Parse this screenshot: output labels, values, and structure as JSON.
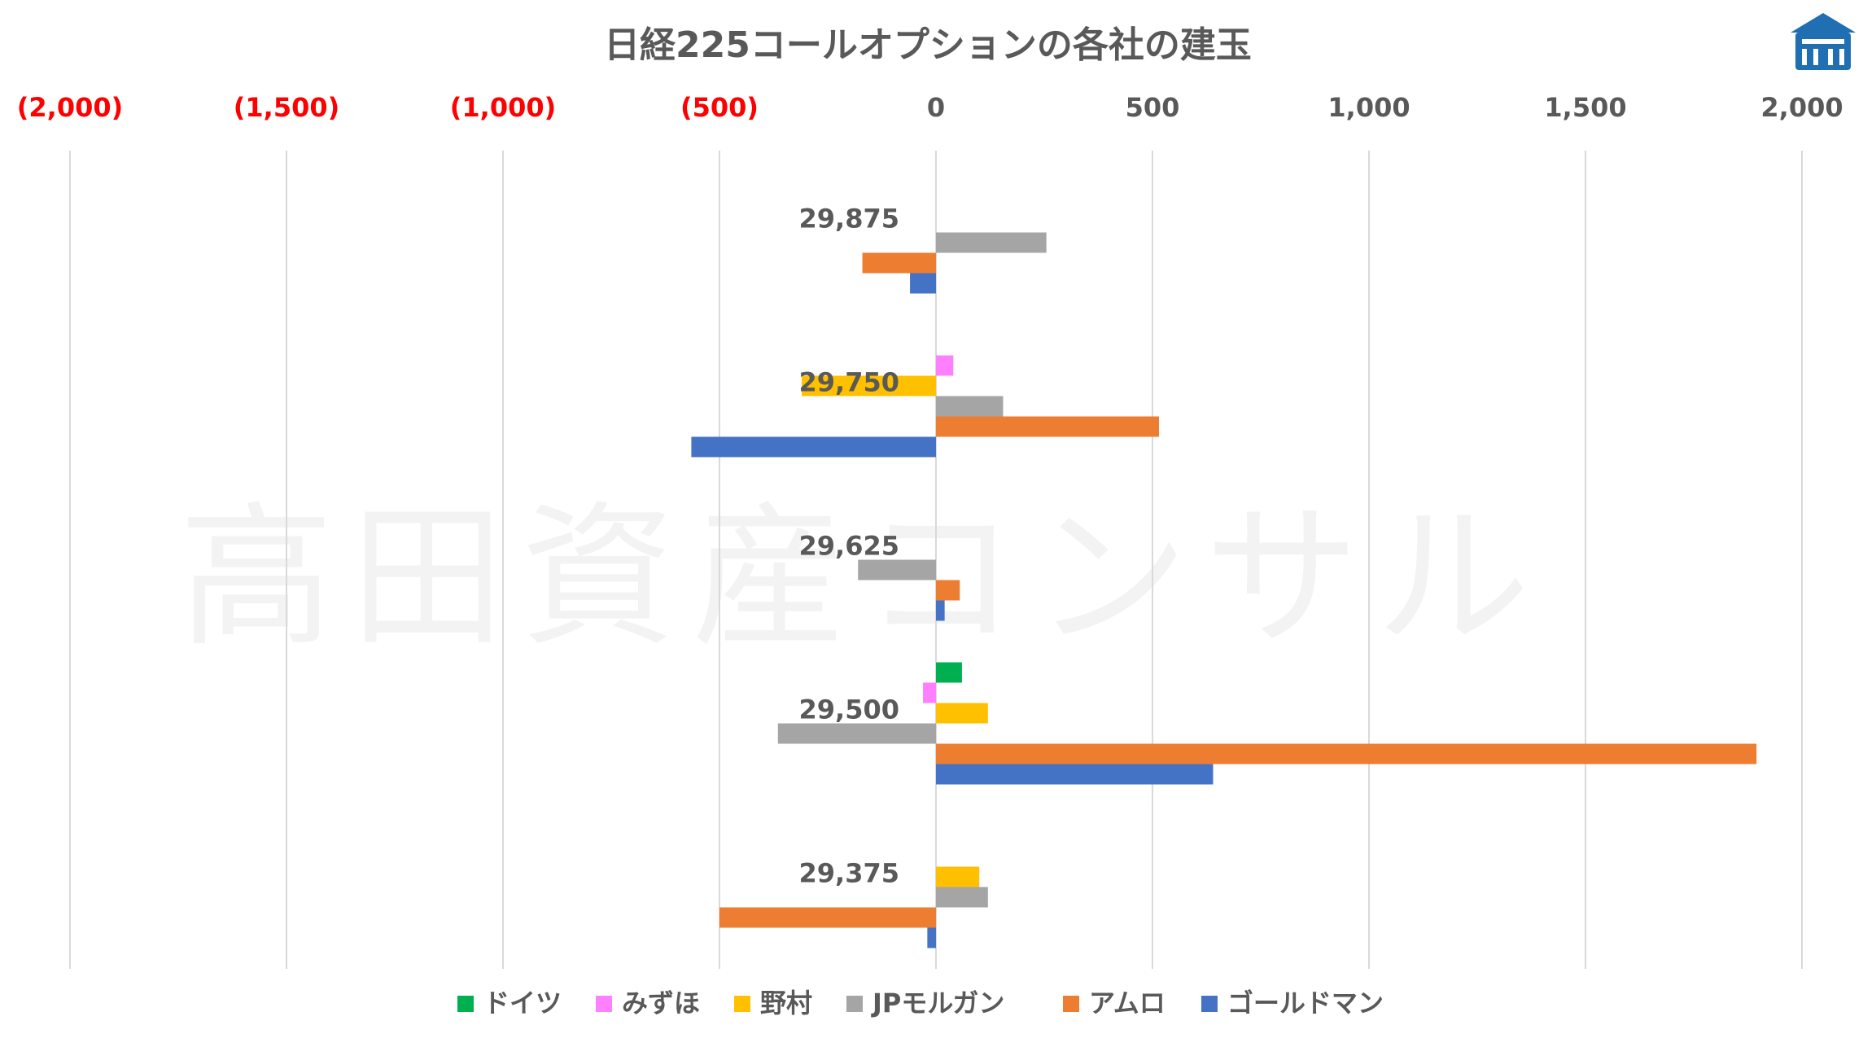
{
  "watermark": "高田資産コンサル",
  "logo": {
    "icon": "building-logo-icon",
    "color": "#1f6fb2"
  },
  "chart_data": {
    "type": "bar",
    "orientation": "horizontal",
    "title": "日経225コールオプションの各社の建玉",
    "xlim": [
      -2000,
      2000
    ],
    "x_ticks": [
      -2000,
      -1500,
      -1000,
      -500,
      0,
      500,
      1000,
      1500,
      2000
    ],
    "x_tick_labels": [
      "(2,000)",
      "(1,500)",
      "(1,000)",
      "(500)",
      "0",
      "500",
      "1,000",
      "1,500",
      "2,000"
    ],
    "negative_tick_color": "#ff0000",
    "positive_tick_color": "#595959",
    "xaxis_position": "top",
    "grid": "vertical",
    "legend_position": "bottom",
    "categories": [
      "29,875",
      "29,750",
      "29,625",
      "29,500",
      "29,375"
    ],
    "series": [
      {
        "name": "ドイツ",
        "color": "#00b050",
        "values": [
          0,
          0,
          0,
          60,
          0
        ]
      },
      {
        "name": "みずほ",
        "color": "#ff80ff",
        "values": [
          0,
          40,
          0,
          -30,
          0
        ]
      },
      {
        "name": "野村",
        "color": "#ffc000",
        "values": [
          0,
          -310,
          0,
          120,
          100
        ]
      },
      {
        "name": "JPモルガン",
        "color": "#a5a5a5",
        "values": [
          255,
          155,
          -180,
          -365,
          120
        ]
      },
      {
        "name": "アムロ",
        "color": "#ed7d31",
        "values": [
          -170,
          515,
          55,
          1895,
          -500
        ]
      },
      {
        "name": "ゴールドマン",
        "color": "#4472c4",
        "values": [
          -60,
          -565,
          20,
          640,
          -20
        ]
      }
    ]
  }
}
